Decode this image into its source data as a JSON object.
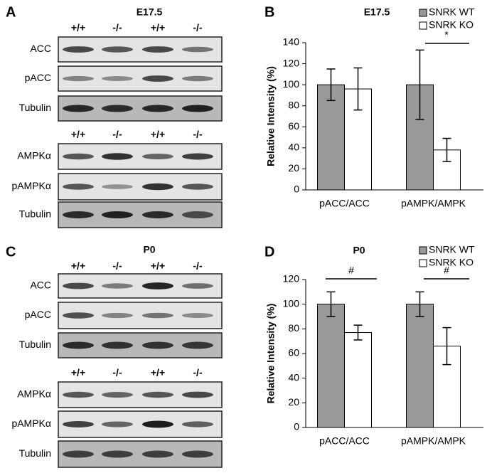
{
  "blots": [
    {
      "panel": "A",
      "title": "E17.5",
      "groups": [
        {
          "genotypes": [
            "+/+",
            "-/-",
            "+/+",
            "-/-"
          ],
          "rows": [
            "ACC",
            "pACC",
            "Tubulin"
          ]
        },
        {
          "genotypes": [
            "+/+",
            "-/-",
            "+/+",
            "-/-"
          ],
          "rows": [
            "AMPKα",
            "pAMPKα",
            "Tubulin"
          ]
        }
      ]
    },
    {
      "panel": "C",
      "title": "P0",
      "groups": [
        {
          "genotypes": [
            "+/+",
            "-/-",
            "+/+",
            "-/-"
          ],
          "rows": [
            "ACC",
            "pACC",
            "Tubulin"
          ]
        },
        {
          "genotypes": [
            "+/+",
            "-/-",
            "+/+",
            "-/-"
          ],
          "rows": [
            "AMPKα",
            "pAMPKα",
            "Tubulin"
          ]
        }
      ]
    }
  ],
  "chart_data": [
    {
      "type": "bar",
      "panel": "B",
      "title": "E17.5",
      "ylabel": "Relative Intensity (%)",
      "categories": [
        "pACC/ACC",
        "pAMPK/AMPK"
      ],
      "series": [
        {
          "name": "SNRK WT",
          "color": "#999999",
          "values": [
            100,
            100
          ],
          "errors": [
            15,
            33
          ]
        },
        {
          "name": "SNRK KO",
          "color": "#ffffff",
          "values": [
            96,
            38
          ],
          "errors": [
            20,
            11
          ]
        }
      ],
      "ylim": [
        0,
        140
      ],
      "yticks": [
        0,
        20,
        40,
        60,
        80,
        100,
        120,
        140
      ],
      "legend": "upper right",
      "annotations": [
        "*"
      ]
    },
    {
      "type": "bar",
      "panel": "D",
      "title": "P0",
      "ylabel": "Relative Intensity (%)",
      "categories": [
        "pACC/ACC",
        "pAMPK/AMPK"
      ],
      "series": [
        {
          "name": "SNRK WT",
          "color": "#999999",
          "values": [
            100,
            100
          ],
          "errors": [
            10,
            10
          ]
        },
        {
          "name": "SNRK KO",
          "color": "#ffffff",
          "values": [
            77,
            66
          ],
          "errors": [
            6,
            15
          ]
        }
      ],
      "ylim": [
        0,
        120
      ],
      "yticks": [
        0,
        20,
        40,
        60,
        80,
        100,
        120
      ],
      "legend": "upper right",
      "annotations": [
        "#",
        "#"
      ]
    }
  ]
}
